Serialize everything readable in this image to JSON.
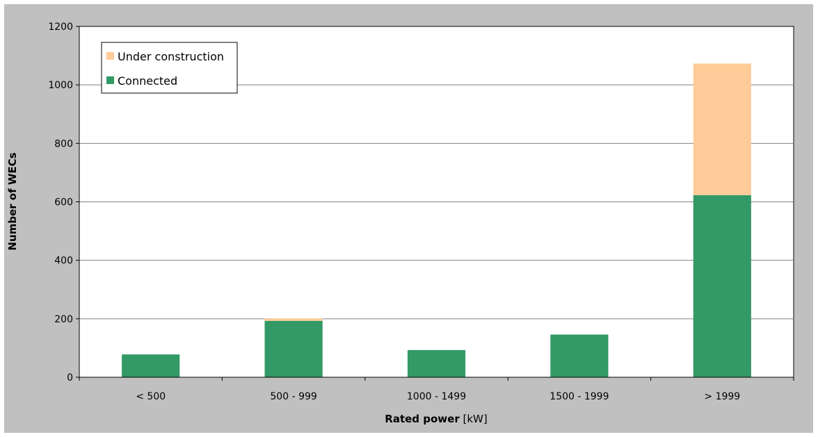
{
  "chart_data": {
    "type": "bar",
    "stacked": true,
    "categories": [
      "< 500",
      "500 - 999",
      "1000 - 1499",
      "1500 - 1999",
      "> 1999"
    ],
    "series": [
      {
        "name": "Connected",
        "values": [
          78,
          193,
          93,
          146,
          623
        ],
        "color": "#339966"
      },
      {
        "name": "Under construction",
        "values": [
          0,
          8,
          0,
          0,
          450
        ],
        "color": "#FFCC99"
      }
    ],
    "title": "",
    "xlabel_bold": "Rated power",
    "xlabel_unit": " [kW]",
    "ylabel": "Number of WECs",
    "ylim": [
      0,
      1200
    ],
    "yticks": [
      "0",
      "200",
      "400",
      "600",
      "800",
      "1000",
      "1200"
    ],
    "grid": true,
    "legend_position": "top-left",
    "legend": [
      {
        "label": "Under construction",
        "color": "#FFCC99"
      },
      {
        "label": "Connected",
        "color": "#339966"
      }
    ],
    "colors": {
      "background": "#C0C0C0",
      "plot_area": "#FFFFFF",
      "gridline": "#808080"
    }
  }
}
